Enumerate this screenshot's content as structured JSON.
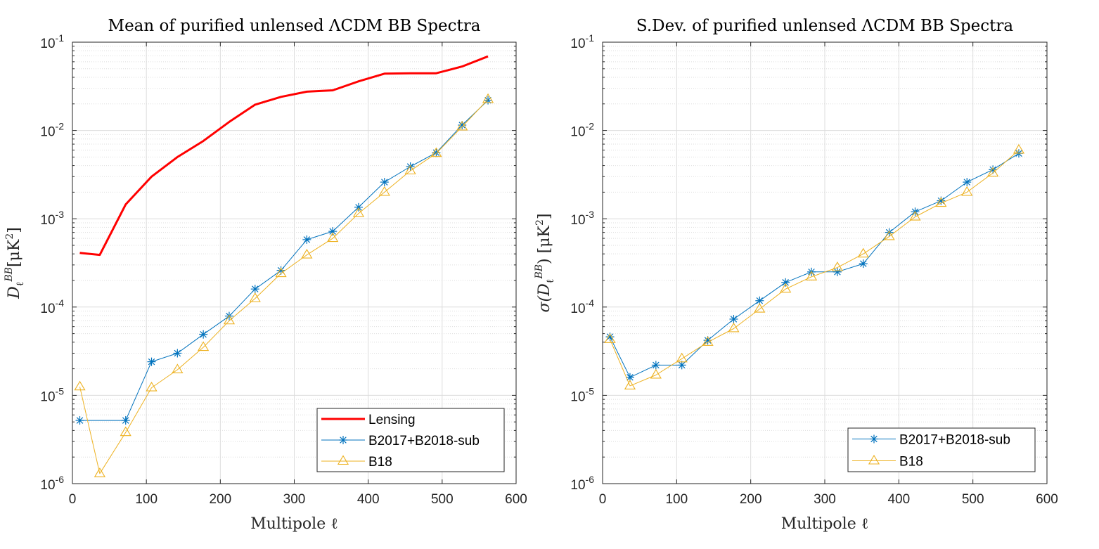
{
  "chart_data": [
    {
      "type": "line",
      "title": "Mean of purified unlensed ΛCDM BB Spectra",
      "xlabel": "Multipole ℓ",
      "ylabel": "D_ℓ^BB [μK²]",
      "ylabel_main": "D",
      "ylabel_sub": "ℓ",
      "ylabel_sup": "BB",
      "ylabel_unit": "[μK",
      "ylabel_unit_sup": "2",
      "ylabel_unit_end": "]",
      "xlim": [
        0,
        600
      ],
      "ylim": [
        1e-06,
        0.1
      ],
      "yscale": "log",
      "grid": true,
      "legend_position": "bottom-right",
      "xticks": [
        0,
        100,
        200,
        300,
        400,
        500,
        600
      ],
      "yticks": [
        {
          "base": "10",
          "exp": "-6"
        },
        {
          "base": "10",
          "exp": "-5"
        },
        {
          "base": "10",
          "exp": "-4"
        },
        {
          "base": "10",
          "exp": "-3"
        },
        {
          "base": "10",
          "exp": "-2"
        },
        {
          "base": "10",
          "exp": "-1"
        }
      ],
      "series": [
        {
          "name": "Lensing",
          "color": "#ff0000",
          "marker": "none",
          "width": 3,
          "x": [
            10,
            37,
            72,
            107,
            142,
            177,
            212,
            247,
            282,
            317,
            352,
            387,
            422,
            457,
            492,
            527,
            562
          ],
          "y": [
            0.00041,
            0.00039,
            0.00145,
            0.003,
            0.005,
            0.0076,
            0.0125,
            0.0196,
            0.024,
            0.0275,
            0.0285,
            0.036,
            0.044,
            0.0445,
            0.0445,
            0.053,
            0.069
          ]
        },
        {
          "name": "B2017+B2018-sub",
          "color": "#0072bd",
          "marker": "asterisk",
          "width": 1,
          "x": [
            10,
            72,
            107,
            142,
            177,
            212,
            247,
            282,
            317,
            352,
            387,
            422,
            457,
            492,
            527,
            562
          ],
          "y": [
            5.2e-06,
            5.2e-06,
            2.4e-05,
            3e-05,
            4.9e-05,
            7.9e-05,
            0.00016,
            0.00026,
            0.00058,
            0.00072,
            0.00135,
            0.0026,
            0.0039,
            0.0056,
            0.0115,
            0.022
          ]
        },
        {
          "name": "B18",
          "color": "#edb120",
          "marker": "triangle",
          "width": 1,
          "x": [
            10,
            37,
            72,
            107,
            142,
            177,
            212,
            247,
            282,
            317,
            352,
            387,
            422,
            457,
            492,
            527,
            562
          ],
          "y": [
            1.25e-05,
            1.3e-06,
            3.8e-06,
            1.22e-05,
            1.95e-05,
            3.5e-05,
            7e-05,
            0.000125,
            0.00024,
            0.00039,
            0.0006,
            0.00115,
            0.002,
            0.0035,
            0.0055,
            0.011,
            0.0225
          ]
        }
      ]
    },
    {
      "type": "line",
      "title": "S.Dev. of purified unlensed ΛCDM BB Spectra",
      "xlabel": "Multipole ℓ",
      "ylabel": "σ(D_ℓ^BB) [μK²]",
      "ylabel_main": "σ(D",
      "ylabel_sub": "ℓ",
      "ylabel_sup": "BB",
      "ylabel_unit": ") [μK",
      "ylabel_unit_sup": "2",
      "ylabel_unit_end": "]",
      "xlim": [
        0,
        600
      ],
      "ylim": [
        1e-06,
        0.1
      ],
      "yscale": "log",
      "grid": true,
      "legend_position": "bottom-right",
      "xticks": [
        0,
        100,
        200,
        300,
        400,
        500,
        600
      ],
      "yticks": [
        {
          "base": "10",
          "exp": "-6"
        },
        {
          "base": "10",
          "exp": "-5"
        },
        {
          "base": "10",
          "exp": "-4"
        },
        {
          "base": "10",
          "exp": "-3"
        },
        {
          "base": "10",
          "exp": "-2"
        },
        {
          "base": "10",
          "exp": "-1"
        }
      ],
      "series": [
        {
          "name": "B2017+B2018-sub",
          "color": "#0072bd",
          "marker": "asterisk",
          "width": 1,
          "x": [
            10,
            37,
            72,
            107,
            142,
            177,
            212,
            247,
            282,
            317,
            352,
            387,
            422,
            457,
            492,
            527,
            562
          ],
          "y": [
            4.6e-05,
            1.6e-05,
            2.2e-05,
            2.2e-05,
            4.2e-05,
            7.3e-05,
            0.000118,
            0.00019,
            0.00025,
            0.00025,
            0.00031,
            0.0007,
            0.0012,
            0.0016,
            0.0026,
            0.0036,
            0.0055
          ]
        },
        {
          "name": "B18",
          "color": "#edb120",
          "marker": "triangle",
          "width": 1,
          "x": [
            10,
            37,
            72,
            107,
            142,
            177,
            212,
            247,
            282,
            317,
            352,
            387,
            422,
            457,
            492,
            527,
            562
          ],
          "y": [
            4.3e-05,
            1.28e-05,
            1.7e-05,
            2.6e-05,
            4e-05,
            5.7e-05,
            9.5e-05,
            0.00016,
            0.00022,
            0.00028,
            0.0004,
            0.00063,
            0.00105,
            0.0015,
            0.002,
            0.0033,
            0.006
          ]
        }
      ]
    }
  ]
}
